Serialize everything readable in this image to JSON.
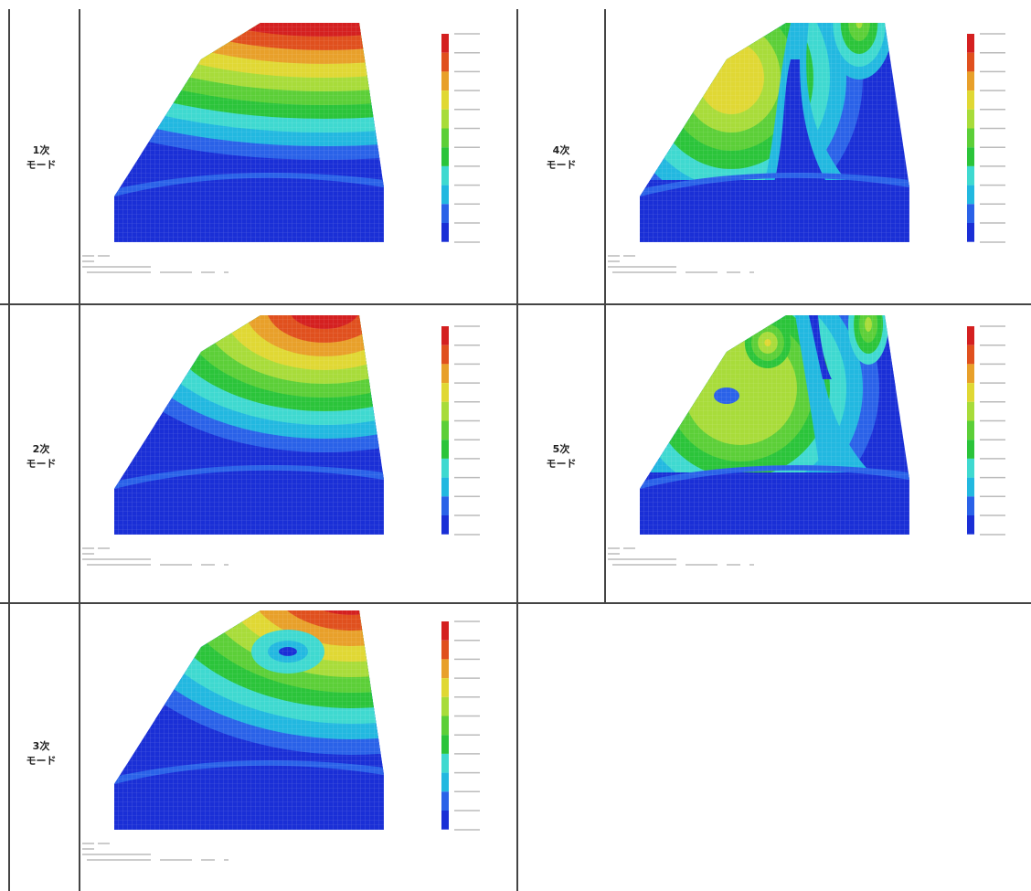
{
  "cells": [
    {
      "mode": "1次",
      "unit": "モード"
    },
    {
      "mode": "4次",
      "unit": "モード"
    },
    {
      "mode": "2次",
      "unit": "モード"
    },
    {
      "mode": "5次",
      "unit": "モード"
    },
    {
      "mode": "3次",
      "unit": "モード"
    }
  ]
}
